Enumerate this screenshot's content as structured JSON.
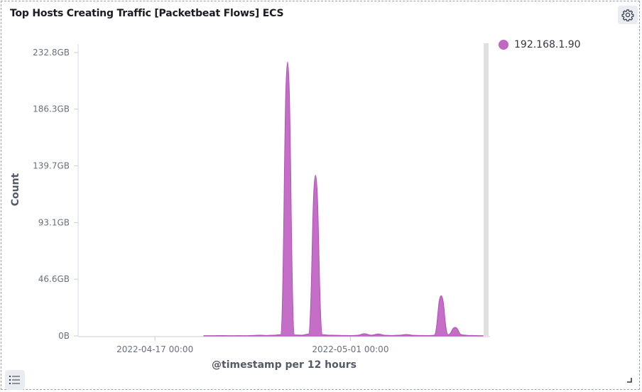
{
  "panel": {
    "title": "Top Hosts Creating Traffic [Packetbeat Flows] ECS"
  },
  "icons": {
    "settings": "gear-icon",
    "legend_toggle": "list-icon",
    "resize": "resize-corner-icon"
  },
  "chart_data": {
    "type": "area",
    "title": "Top Hosts Creating Traffic [Packetbeat Flows] ECS",
    "xlabel": "@timestamp per 12 hours",
    "ylabel": "Count",
    "y_unit": "GB",
    "ylim": [
      0,
      232.8
    ],
    "y_ticks": [
      {
        "value": 0,
        "label": "0B"
      },
      {
        "value": 46.6,
        "label": "46.6GB"
      },
      {
        "value": 93.1,
        "label": "93.1GB"
      },
      {
        "value": 139.7,
        "label": "139.7GB"
      },
      {
        "value": 186.3,
        "label": "186.3GB"
      },
      {
        "value": 232.8,
        "label": "232.8GB"
      }
    ],
    "xlim": [
      "2022-04-11 12:00",
      "2022-05-11 00:00"
    ],
    "x_ticks": [
      {
        "value": "2022-04-17 00:00",
        "label": "2022-04-17 00:00"
      },
      {
        "value": "2022-05-01 00:00",
        "label": "2022-05-01 00:00"
      }
    ],
    "legend_position": "top-right",
    "series": [
      {
        "name": "192.168.1.90",
        "color": "#c266c4",
        "x": [
          "2022-04-20 12:00",
          "2022-04-21 00:00",
          "2022-04-21 12:00",
          "2022-04-22 00:00",
          "2022-04-22 12:00",
          "2022-04-23 00:00",
          "2022-04-23 12:00",
          "2022-04-24 00:00",
          "2022-04-24 12:00",
          "2022-04-25 00:00",
          "2022-04-25 12:00",
          "2022-04-26 00:00",
          "2022-04-26 12:00",
          "2022-04-27 00:00",
          "2022-04-27 12:00",
          "2022-04-28 00:00",
          "2022-04-28 12:00",
          "2022-04-29 00:00",
          "2022-04-29 12:00",
          "2022-04-30 00:00",
          "2022-04-30 12:00",
          "2022-05-01 00:00",
          "2022-05-01 12:00",
          "2022-05-02 00:00",
          "2022-05-02 12:00",
          "2022-05-03 00:00",
          "2022-05-03 12:00",
          "2022-05-04 00:00",
          "2022-05-04 12:00",
          "2022-05-05 00:00",
          "2022-05-05 12:00",
          "2022-05-06 00:00",
          "2022-05-06 12:00",
          "2022-05-07 00:00",
          "2022-05-07 12:00",
          "2022-05-08 00:00",
          "2022-05-08 12:00",
          "2022-05-09 00:00",
          "2022-05-09 12:00",
          "2022-05-10 00:00",
          "2022-05-10 12:00"
        ],
        "values": [
          0.2,
          0.2,
          0.3,
          0.3,
          0.2,
          0.3,
          0.2,
          0.4,
          0.6,
          0.4,
          0.6,
          1.0,
          225,
          0.8,
          0.6,
          1.5,
          132,
          1.0,
          0.6,
          0.5,
          0.4,
          0.3,
          0.5,
          1.8,
          0.6,
          1.6,
          0.5,
          0.4,
          0.6,
          1.2,
          0.5,
          0.4,
          0.3,
          0.5,
          33,
          1.0,
          7,
          0.8,
          0.4,
          0.3,
          0.2
        ]
      }
    ]
  }
}
